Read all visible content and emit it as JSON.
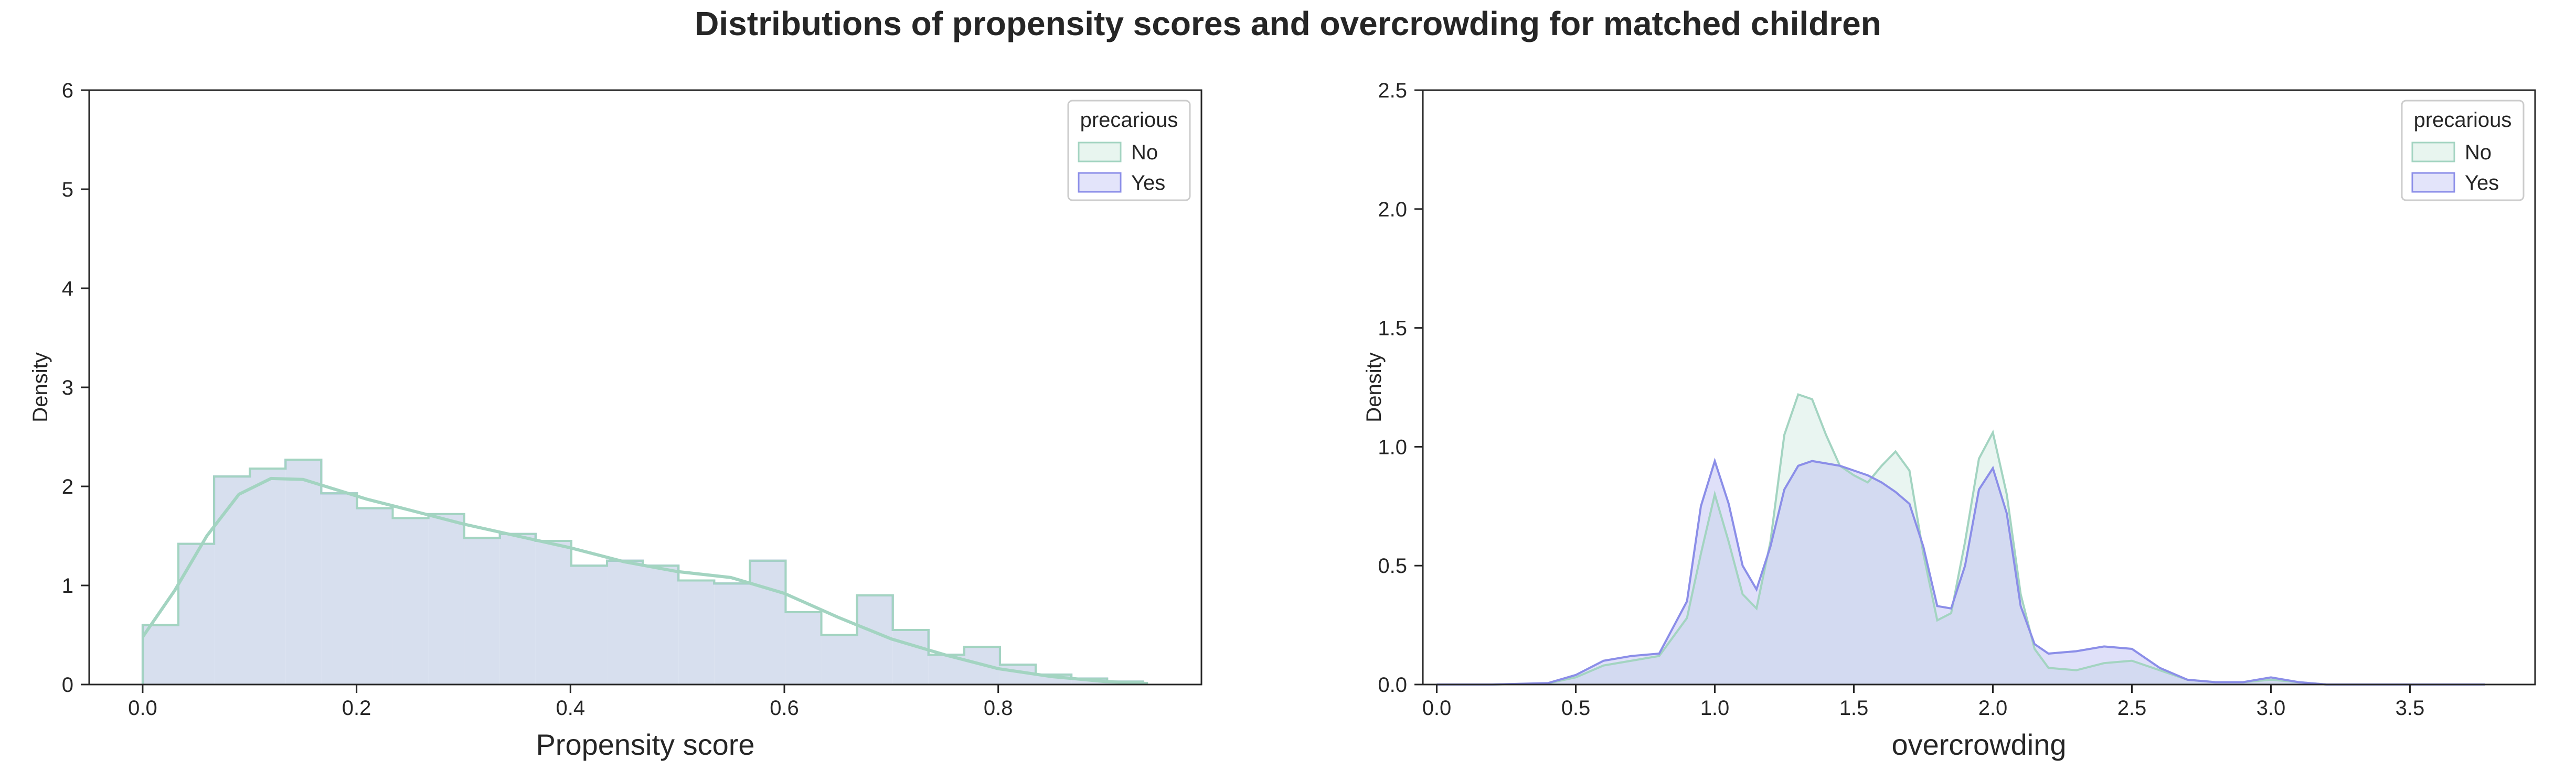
{
  "title": "Distributions of propensity scores and overcrowding for matched children",
  "colors": {
    "no": "#a3d4c1",
    "yes": "#8b8ee8",
    "overlap_fill": "#d7dfee",
    "axis": "#262626"
  },
  "chart_data": [
    {
      "type": "histogram",
      "xlabel": "Propensity score",
      "ylabel": "Density",
      "xlim": [
        -0.05,
        0.99
      ],
      "ylim": [
        0,
        6
      ],
      "xticks": [
        0.0,
        0.2,
        0.4,
        0.6,
        0.8
      ],
      "xtick_labels": [
        "0.0",
        "0.2",
        "0.4",
        "0.6",
        "0.8"
      ],
      "yticks": [
        0,
        1,
        2,
        3,
        4,
        5,
        6
      ],
      "ytick_labels": [
        "0",
        "1",
        "2",
        "3",
        "4",
        "5",
        "6"
      ],
      "legend": {
        "title": "precarious",
        "entries": [
          "No",
          "Yes"
        ],
        "placement": "top-right"
      },
      "bin_edges": [
        0.0,
        0.0334,
        0.0668,
        0.1002,
        0.1336,
        0.167,
        0.2004,
        0.2338,
        0.2672,
        0.3006,
        0.334,
        0.3674,
        0.4008,
        0.4342,
        0.4676,
        0.501,
        0.5344,
        0.5678,
        0.6012,
        0.6346,
        0.668,
        0.7014,
        0.7348,
        0.7682,
        0.8016,
        0.835,
        0.8684,
        0.9018,
        0.9352
      ],
      "series": [
        {
          "name": "No",
          "values": [
            0.6,
            1.42,
            2.1,
            2.18,
            2.27,
            1.93,
            1.78,
            1.68,
            1.72,
            1.48,
            1.52,
            1.45,
            1.2,
            1.25,
            1.2,
            1.05,
            1.02,
            1.25,
            0.73,
            0.5,
            0.9,
            0.55,
            0.3,
            0.38,
            0.2,
            0.1,
            0.06,
            0.03
          ],
          "kde": {
            "x": [
              0.0,
              0.03,
              0.06,
              0.09,
              0.12,
              0.15,
              0.18,
              0.21,
              0.25,
              0.3,
              0.35,
              0.4,
              0.45,
              0.5,
              0.55,
              0.6,
              0.65,
              0.7,
              0.75,
              0.8,
              0.85,
              0.9,
              0.94
            ],
            "y": [
              0.48,
              0.95,
              1.5,
              1.92,
              2.08,
              2.07,
              1.97,
              1.87,
              1.76,
              1.62,
              1.5,
              1.38,
              1.24,
              1.14,
              1.08,
              0.92,
              0.68,
              0.46,
              0.3,
              0.16,
              0.08,
              0.03,
              0.01
            ]
          }
        },
        {
          "name": "Yes",
          "values": [
            0.6,
            1.42,
            2.1,
            2.18,
            2.27,
            1.93,
            1.78,
            1.68,
            1.72,
            1.48,
            1.52,
            1.45,
            1.2,
            1.25,
            1.2,
            1.05,
            1.02,
            1.25,
            0.73,
            0.5,
            0.9,
            0.55,
            0.3,
            0.38,
            0.2,
            0.1,
            0.06,
            0.03
          ]
        }
      ]
    },
    {
      "type": "area",
      "xlabel": "overcrowding",
      "ylabel": "Density",
      "xlim": [
        -0.05,
        3.95
      ],
      "ylim": [
        0,
        2.5
      ],
      "xticks": [
        0.0,
        0.5,
        1.0,
        1.5,
        2.0,
        2.5,
        3.0,
        3.5
      ],
      "xtick_labels": [
        "0.0",
        "0.5",
        "1.0",
        "1.5",
        "2.0",
        "2.5",
        "3.0",
        "3.5"
      ],
      "yticks": [
        0.0,
        0.5,
        1.0,
        1.5,
        2.0,
        2.5
      ],
      "ytick_labels": [
        "0.0",
        "0.5",
        "1.0",
        "1.5",
        "2.0",
        "2.5"
      ],
      "legend": {
        "title": "precarious",
        "entries": [
          "No",
          "Yes"
        ],
        "placement": "top-right"
      },
      "series": [
        {
          "name": "No",
          "x": [
            0.0,
            0.2,
            0.4,
            0.5,
            0.6,
            0.7,
            0.8,
            0.9,
            0.95,
            1.0,
            1.05,
            1.1,
            1.15,
            1.2,
            1.25,
            1.3,
            1.35,
            1.4,
            1.45,
            1.5,
            1.55,
            1.6,
            1.65,
            1.7,
            1.75,
            1.8,
            1.85,
            1.9,
            1.95,
            2.0,
            2.05,
            2.1,
            2.15,
            2.2,
            2.3,
            2.4,
            2.5,
            2.6,
            2.7,
            2.8,
            2.9,
            3.0,
            3.1,
            3.2,
            3.4,
            3.77
          ],
          "y": [
            0.0,
            0.0,
            0.005,
            0.03,
            0.08,
            0.1,
            0.12,
            0.28,
            0.55,
            0.8,
            0.6,
            0.38,
            0.32,
            0.6,
            1.05,
            1.22,
            1.2,
            1.05,
            0.92,
            0.88,
            0.85,
            0.92,
            0.98,
            0.9,
            0.55,
            0.27,
            0.3,
            0.6,
            0.95,
            1.06,
            0.8,
            0.38,
            0.15,
            0.07,
            0.06,
            0.09,
            0.1,
            0.06,
            0.02,
            0.01,
            0.01,
            0.02,
            0.01,
            0.0,
            0.0,
            0.0
          ]
        },
        {
          "name": "Yes",
          "x": [
            0.0,
            0.2,
            0.4,
            0.5,
            0.6,
            0.7,
            0.8,
            0.9,
            0.95,
            1.0,
            1.05,
            1.1,
            1.15,
            1.2,
            1.25,
            1.3,
            1.35,
            1.4,
            1.45,
            1.5,
            1.55,
            1.6,
            1.65,
            1.7,
            1.75,
            1.8,
            1.85,
            1.9,
            1.95,
            2.0,
            2.05,
            2.1,
            2.15,
            2.2,
            2.3,
            2.4,
            2.5,
            2.6,
            2.7,
            2.8,
            2.9,
            3.0,
            3.1,
            3.2,
            3.4,
            3.77
          ],
          "y": [
            0.0,
            0.0,
            0.006,
            0.04,
            0.1,
            0.12,
            0.13,
            0.35,
            0.75,
            0.94,
            0.76,
            0.5,
            0.4,
            0.58,
            0.82,
            0.92,
            0.94,
            0.93,
            0.92,
            0.9,
            0.88,
            0.85,
            0.81,
            0.76,
            0.58,
            0.33,
            0.32,
            0.5,
            0.82,
            0.91,
            0.72,
            0.33,
            0.17,
            0.13,
            0.14,
            0.16,
            0.15,
            0.07,
            0.02,
            0.01,
            0.01,
            0.03,
            0.01,
            0.0,
            0.0,
            0.0
          ]
        }
      ]
    }
  ]
}
